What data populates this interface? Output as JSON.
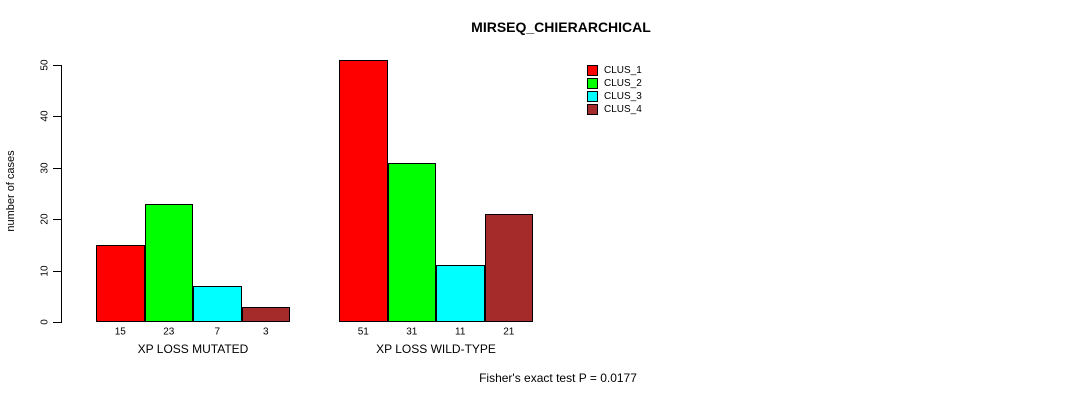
{
  "chart_data": {
    "type": "bar",
    "title": "MIRSEQ_CHIERARCHICAL",
    "ylabel": "number of cases",
    "xlabel": "",
    "ylim": [
      0,
      50
    ],
    "yticks": [
      0,
      10,
      20,
      30,
      40,
      50
    ],
    "grid": false,
    "categories": [
      "XP LOSS MUTATED",
      "XP LOSS WILD-TYPE"
    ],
    "series": [
      {
        "name": "CLUS_1",
        "color": "#ff0000",
        "values": [
          15,
          51
        ]
      },
      {
        "name": "CLUS_2",
        "color": "#00ff00",
        "values": [
          23,
          31
        ]
      },
      {
        "name": "CLUS_3",
        "color": "#00ffff",
        "values": [
          7,
          11
        ]
      },
      {
        "name": "CLUS_4",
        "color": "#a52a2a",
        "values": [
          3,
          21
        ]
      }
    ],
    "bar_value_labels": [
      [
        15,
        23,
        7,
        3
      ],
      [
        51,
        31,
        11,
        21
      ]
    ],
    "legend": {
      "position": "top-right",
      "entries": [
        "CLUS_1",
        "CLUS_2",
        "CLUS_3",
        "CLUS_4"
      ]
    },
    "annotation": "Fisher's exact test P = 0.0177"
  },
  "colors": {
    "background": "#ffffff",
    "axis": "#000000",
    "text": "#000000"
  }
}
